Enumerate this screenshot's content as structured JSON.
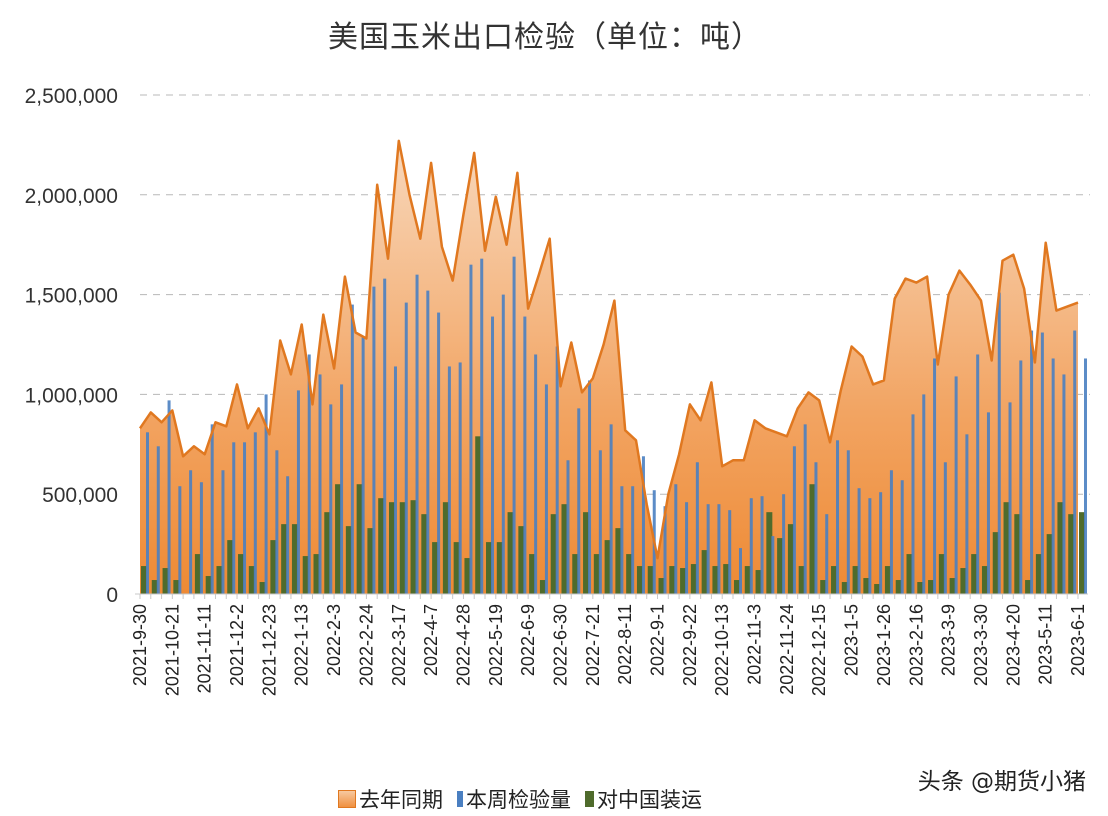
{
  "chart_data": {
    "type": "bar+area",
    "title": "美国玉米出口检验（单位：吨）",
    "xlabel": "",
    "ylabel": "",
    "ylim": [
      0,
      2500000
    ],
    "yticks": [
      0,
      500000,
      1000000,
      1500000,
      2000000,
      2500000
    ],
    "ytick_labels": [
      "0",
      "500,000",
      "1,000,000",
      "1,500,000",
      "2,000,000",
      "2,500,000"
    ],
    "grid": "horizontal dashed",
    "legend_position": "bottom",
    "categories": [
      "2021-9-30",
      "2021-10-7",
      "2021-10-14",
      "2021-10-21",
      "2021-10-28",
      "2021-11-4",
      "2021-11-11",
      "2021-11-18",
      "2021-11-25",
      "2021-12-2",
      "2021-12-9",
      "2021-12-16",
      "2021-12-23",
      "2021-12-30",
      "2022-1-6",
      "2022-1-13",
      "2022-1-20",
      "2022-1-27",
      "2022-2-3",
      "2022-2-10",
      "2022-2-17",
      "2022-2-24",
      "2022-3-3",
      "2022-3-10",
      "2022-3-17",
      "2022-3-24",
      "2022-3-31",
      "2022-4-7",
      "2022-4-14",
      "2022-4-21",
      "2022-4-28",
      "2022-5-5",
      "2022-5-12",
      "2022-5-19",
      "2022-5-26",
      "2022-6-2",
      "2022-6-9",
      "2022-6-16",
      "2022-6-23",
      "2022-6-30",
      "2022-7-7",
      "2022-7-14",
      "2022-7-21",
      "2022-7-28",
      "2022-8-4",
      "2022-8-11",
      "2022-8-18",
      "2022-8-25",
      "2022-9-1",
      "2022-9-8",
      "2022-9-15",
      "2022-9-22",
      "2022-9-29",
      "2022-10-6",
      "2022-10-13",
      "2022-10-20",
      "2022-10-27",
      "2022-11-3",
      "2022-11-10",
      "2022-11-17",
      "2022-11-24",
      "2022-12-1",
      "2022-12-8",
      "2022-12-15",
      "2022-12-22",
      "2022-12-29",
      "2023-1-5",
      "2023-1-12",
      "2023-1-19",
      "2023-1-26",
      "2023-2-2",
      "2023-2-9",
      "2023-2-16",
      "2023-2-23",
      "2023-3-2",
      "2023-3-9",
      "2023-3-16",
      "2023-3-23",
      "2023-3-30",
      "2023-4-6",
      "2023-4-13",
      "2023-4-20",
      "2023-4-27",
      "2023-5-4",
      "2023-5-11",
      "2023-5-18",
      "2023-5-25",
      "2023-6-1"
    ],
    "tick_every": 3,
    "series": [
      {
        "name": "去年同期",
        "type": "area",
        "color": "#f0a060",
        "line_color": "#e07820",
        "values": [
          830000,
          910000,
          860000,
          920000,
          690000,
          740000,
          700000,
          860000,
          840000,
          1050000,
          830000,
          930000,
          800000,
          1270000,
          1100000,
          1350000,
          950000,
          1400000,
          1130000,
          1590000,
          1310000,
          1280000,
          2050000,
          1680000,
          2270000,
          2000000,
          1780000,
          2160000,
          1740000,
          1570000,
          1900000,
          2210000,
          1720000,
          1990000,
          1750000,
          2110000,
          1430000,
          1600000,
          1780000,
          1040000,
          1260000,
          1010000,
          1080000,
          1250000,
          1470000,
          820000,
          770000,
          450000,
          180000,
          500000,
          700000,
          950000,
          870000,
          1060000,
          640000,
          670000,
          670000,
          870000,
          830000,
          810000,
          790000,
          930000,
          1010000,
          970000,
          760000,
          1020000,
          1240000,
          1190000,
          1050000,
          1070000,
          1480000,
          1580000,
          1560000,
          1590000,
          1150000,
          1500000,
          1620000,
          1550000,
          1470000,
          1170000,
          1670000,
          1700000,
          1530000,
          1160000,
          1760000,
          1420000,
          1440000,
          1460000
        ]
      },
      {
        "name": "本周检验量",
        "type": "bar",
        "color": "#4a7fc1",
        "values": [
          810000,
          740000,
          970000,
          540000,
          620000,
          560000,
          850000,
          620000,
          760000,
          760000,
          810000,
          1000000,
          720000,
          590000,
          1020000,
          1200000,
          1100000,
          950000,
          1050000,
          1450000,
          1290000,
          1540000,
          1580000,
          1140000,
          1460000,
          1600000,
          1520000,
          1410000,
          1140000,
          1160000,
          1650000,
          1680000,
          1390000,
          1500000,
          1690000,
          1390000,
          1200000,
          1050000,
          1240000,
          670000,
          930000,
          1070000,
          720000,
          850000,
          540000,
          540000,
          690000,
          520000,
          440000,
          550000,
          460000,
          660000,
          450000,
          450000,
          420000,
          230000,
          480000,
          490000,
          290000,
          500000,
          740000,
          850000,
          660000,
          400000,
          770000,
          720000,
          530000,
          480000,
          510000,
          620000,
          570000,
          900000,
          1000000,
          1180000,
          660000,
          1090000,
          800000,
          1200000,
          910000,
          1510000,
          960000,
          1170000,
          1320000,
          1310000,
          1180000,
          1100000,
          1320000,
          1180000
        ]
      },
      {
        "name": "对中国装运",
        "type": "bar",
        "color": "#4f6b2c",
        "values": [
          140000,
          70000,
          130000,
          70000,
          0,
          200000,
          90000,
          140000,
          270000,
          200000,
          140000,
          60000,
          270000,
          350000,
          350000,
          190000,
          200000,
          410000,
          550000,
          340000,
          550000,
          330000,
          480000,
          460000,
          460000,
          470000,
          400000,
          260000,
          460000,
          260000,
          180000,
          790000,
          260000,
          260000,
          410000,
          340000,
          200000,
          70000,
          400000,
          450000,
          200000,
          410000,
          200000,
          270000,
          330000,
          200000,
          140000,
          140000,
          80000,
          140000,
          130000,
          150000,
          220000,
          140000,
          150000,
          70000,
          140000,
          120000,
          410000,
          280000,
          350000,
          140000,
          550000,
          70000,
          140000,
          60000,
          140000,
          80000,
          50000,
          140000,
          70000,
          200000,
          60000,
          70000,
          200000,
          80000,
          130000,
          200000,
          140000,
          310000,
          460000,
          400000,
          70000,
          200000,
          300000,
          460000,
          400000,
          410000
        ]
      }
    ]
  },
  "watermark": "头条 @期货小猪"
}
